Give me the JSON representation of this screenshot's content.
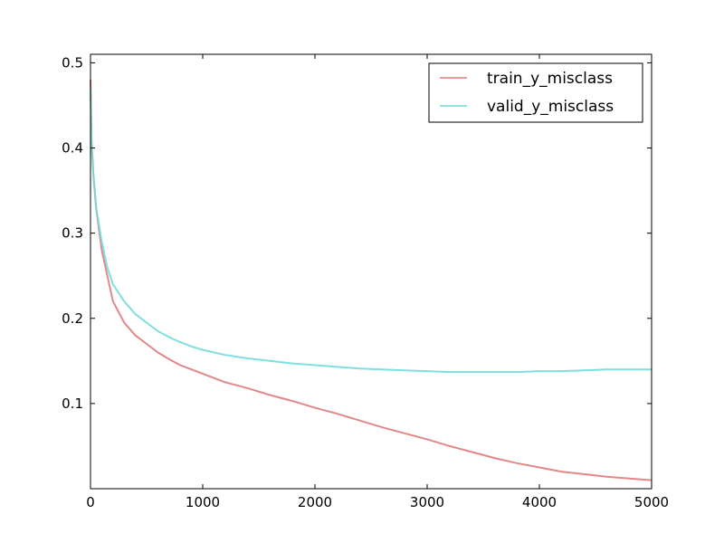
{
  "chart_data": {
    "type": "line",
    "title": "",
    "xlabel": "",
    "ylabel": "",
    "xlim": [
      0,
      5000
    ],
    "ylim": [
      0.0,
      0.51
    ],
    "x_ticks": [
      0,
      1000,
      2000,
      3000,
      4000,
      5000
    ],
    "x_tick_labels": [
      "0",
      "1000",
      "2000",
      "3000",
      "4000",
      "5000"
    ],
    "y_ticks": [
      0.1,
      0.2,
      0.3,
      0.4,
      0.5
    ],
    "y_tick_labels": [
      "0.1",
      "0.2",
      "0.3",
      "0.4",
      "0.5"
    ],
    "grid": false,
    "legend_position": "top-right",
    "series": [
      {
        "name": "train_y_misclass",
        "color": "#e07b7b",
        "x": [
          0,
          10,
          25,
          50,
          100,
          150,
          200,
          300,
          400,
          500,
          600,
          700,
          800,
          900,
          1000,
          1200,
          1400,
          1600,
          1800,
          2000,
          2200,
          2400,
          2600,
          2800,
          3000,
          3200,
          3400,
          3600,
          3800,
          4000,
          4200,
          4400,
          4600,
          4800,
          5000
        ],
        "values": [
          0.48,
          0.41,
          0.37,
          0.33,
          0.28,
          0.25,
          0.22,
          0.195,
          0.18,
          0.17,
          0.16,
          0.152,
          0.145,
          0.14,
          0.135,
          0.125,
          0.118,
          0.11,
          0.103,
          0.095,
          0.088,
          0.08,
          0.072,
          0.065,
          0.058,
          0.05,
          0.043,
          0.036,
          0.03,
          0.025,
          0.02,
          0.017,
          0.014,
          0.012,
          0.01
        ]
      },
      {
        "name": "valid_y_misclass",
        "color": "#6fdcdc",
        "x": [
          0,
          10,
          25,
          50,
          100,
          150,
          200,
          300,
          400,
          500,
          600,
          700,
          800,
          900,
          1000,
          1200,
          1400,
          1600,
          1800,
          2000,
          2200,
          2400,
          2600,
          2800,
          3000,
          3200,
          3400,
          3600,
          3800,
          4000,
          4200,
          4400,
          4600,
          4800,
          5000
        ],
        "values": [
          0.47,
          0.4,
          0.37,
          0.33,
          0.29,
          0.26,
          0.24,
          0.22,
          0.205,
          0.195,
          0.185,
          0.178,
          0.172,
          0.167,
          0.163,
          0.157,
          0.153,
          0.15,
          0.147,
          0.145,
          0.143,
          0.141,
          0.14,
          0.139,
          0.138,
          0.137,
          0.137,
          0.137,
          0.137,
          0.138,
          0.138,
          0.139,
          0.14,
          0.14,
          0.14
        ]
      }
    ]
  }
}
